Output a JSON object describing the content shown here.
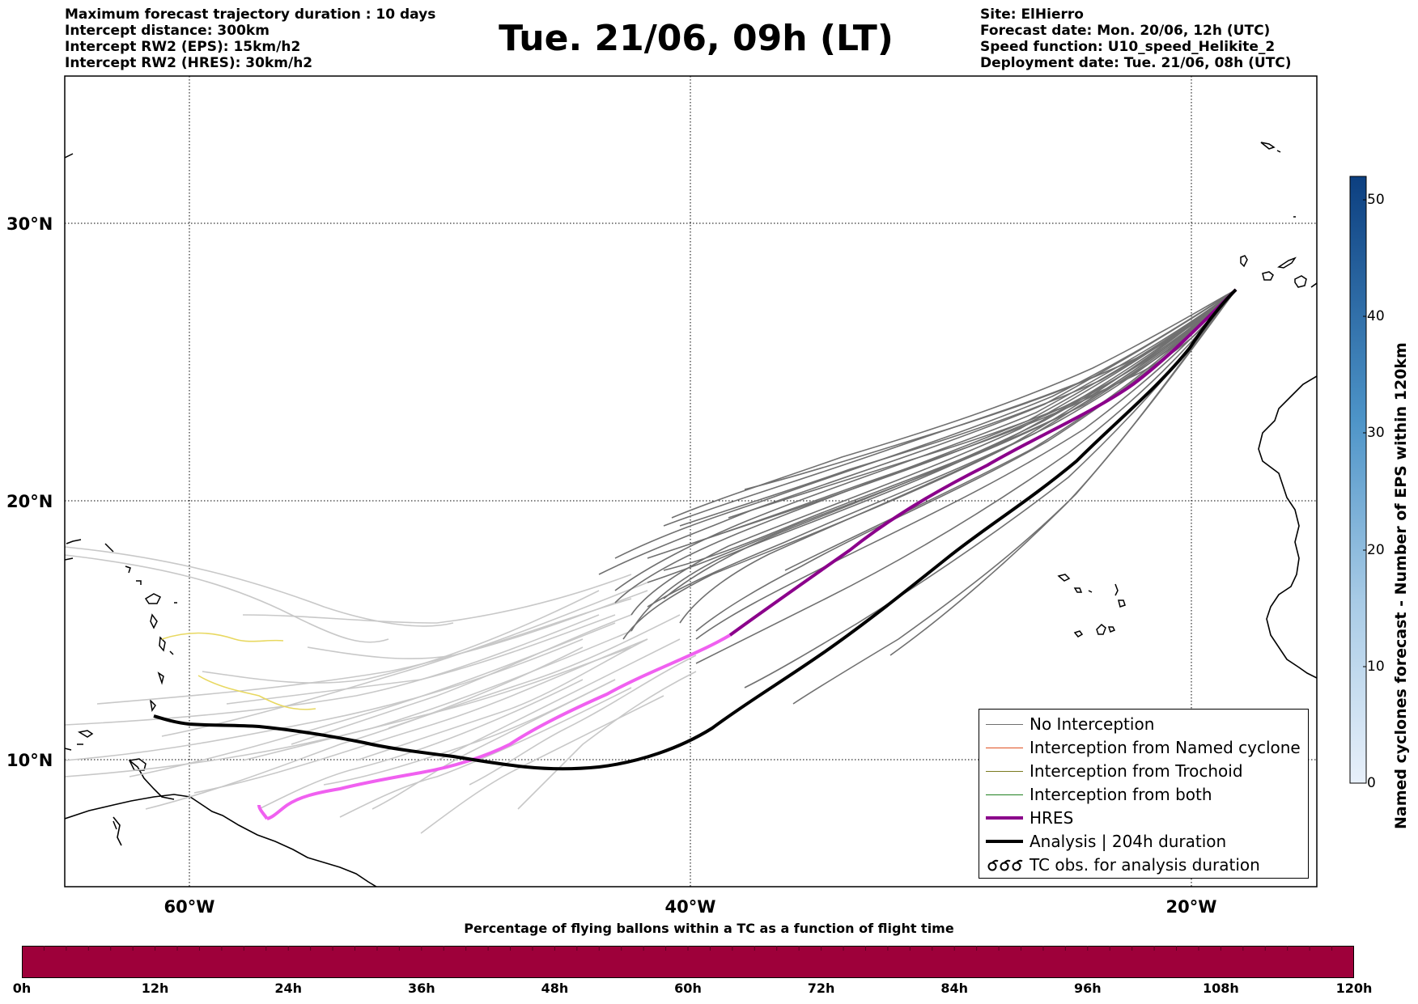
{
  "header_left": [
    "Maximum forecast trajectory duration : 10 days",
    "Intercept distance: 300km",
    "Intercept RW2 (EPS):  15km/h2",
    "Intercept RW2 (HRES): 30km/h2"
  ],
  "title": "Tue. 21/06, 09h (LT)",
  "header_right": [
    "Site: ElHierro",
    "Forecast date: Mon. 20/06, 12h (UTC)",
    "Speed function: U10_speed_Helikite_2",
    "Deployment date: Tue. 21/06, 08h (UTC)"
  ],
  "map": {
    "lon_range": [
      -65,
      15
    ],
    "lat_range": [
      5.5,
      34.8
    ],
    "lat_labels": [
      "30°N",
      "20°N",
      "10°N"
    ],
    "lon_labels": [
      "60°W",
      "40°W",
      "20°W"
    ]
  },
  "legend": {
    "items": [
      {
        "label": "No Interception",
        "color": "#707070",
        "style": "line-thin"
      },
      {
        "label": "Interception from Named cyclone",
        "color": "#e05020",
        "style": "line-thin"
      },
      {
        "label": "Interception from Trochoid",
        "color": "#7a7a20",
        "style": "line-thin"
      },
      {
        "label": "Interception from both",
        "color": "#208020",
        "style": "line-thin"
      },
      {
        "label": "HRES",
        "color": "#8b008b",
        "style": "line-thick"
      },
      {
        "label": "Analysis | 204h duration",
        "color": "#000000",
        "style": "line-thick"
      },
      {
        "label": "TC obs. for analysis duration",
        "color": "#000000",
        "style": "symbol"
      }
    ]
  },
  "colorbar": {
    "label": "Named cyclones forecast - Number of EPS within 120km",
    "ticks": [
      "50",
      "40",
      "30",
      "20",
      "10",
      "0"
    ],
    "range": [
      0,
      52
    ]
  },
  "bottom_bar": {
    "title": "Percentage of flying ballons within a TC as a function of flight time",
    "color": "#9e003a",
    "ticks": [
      "0h",
      "12h",
      "24h",
      "36h",
      "48h",
      "60h",
      "72h",
      "84h",
      "96h",
      "108h",
      "120h"
    ]
  },
  "colors": {
    "eps_no_interception": "#707070",
    "eps_faded": "#c8c8c8",
    "hres": "#8b008b",
    "hres_faded": "#f060f0",
    "analysis": "#000000",
    "trochoid_track": "#e8d860"
  }
}
